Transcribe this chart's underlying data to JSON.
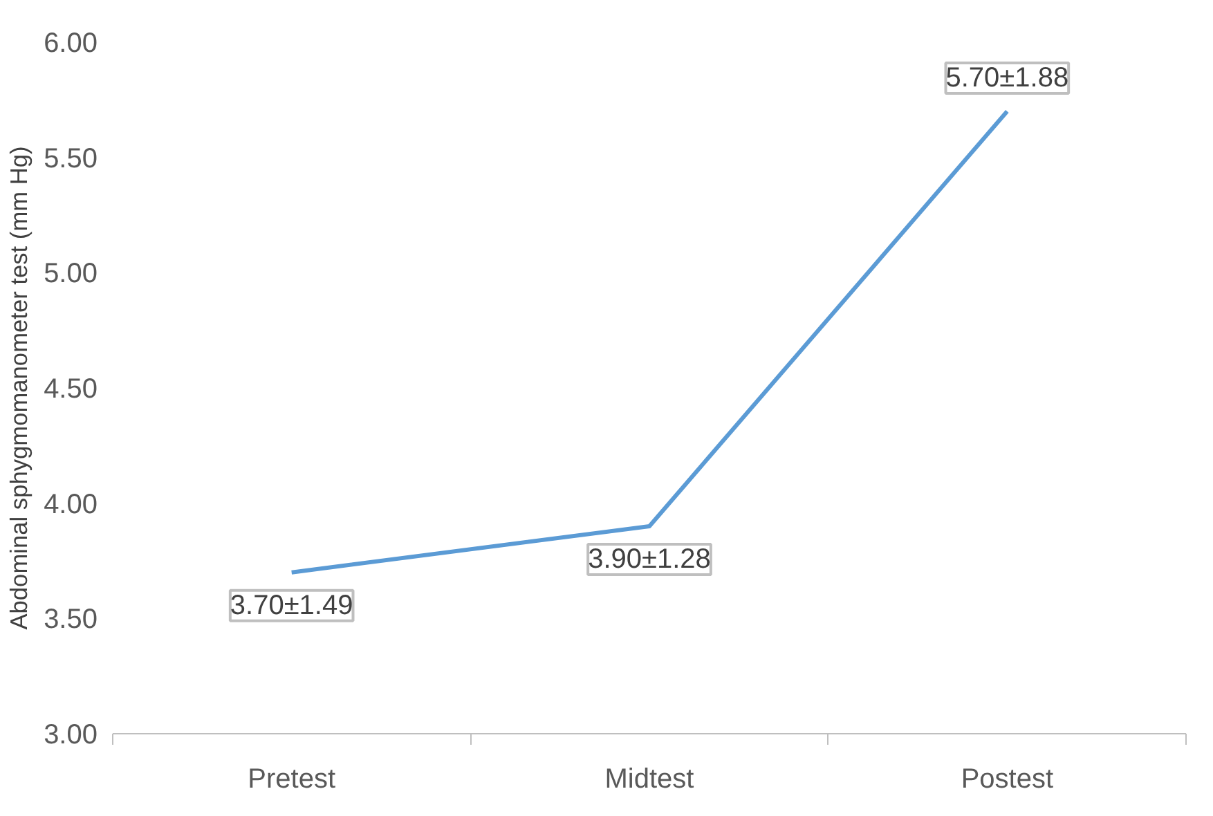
{
  "chart_data": {
    "type": "line",
    "ylabel": "Abdominal sphygmomanometer test (mm Hg)",
    "categories": [
      "Pretest",
      "Midtest",
      "Postest"
    ],
    "series": [
      {
        "color": "#5b9bd5",
        "values": [
          3.7,
          3.9,
          5.7
        ],
        "value_labels": [
          "3.70±1.49",
          "3.90±1.28",
          "5.70±1.88"
        ]
      }
    ],
    "ylim": [
      3,
      6
    ],
    "yticks": [
      {
        "value": 3,
        "label": "3.00"
      },
      {
        "value": 3.5,
        "label": "3.50"
      },
      {
        "value": 4,
        "label": "4.00"
      },
      {
        "value": 4.5,
        "label": "4.50"
      },
      {
        "value": 5,
        "label": "5.00"
      },
      {
        "value": 5.5,
        "label": "5.50"
      },
      {
        "value": 6,
        "label": "6.00"
      }
    ],
    "grid": false,
    "marker": "none",
    "line_style": "solid"
  }
}
